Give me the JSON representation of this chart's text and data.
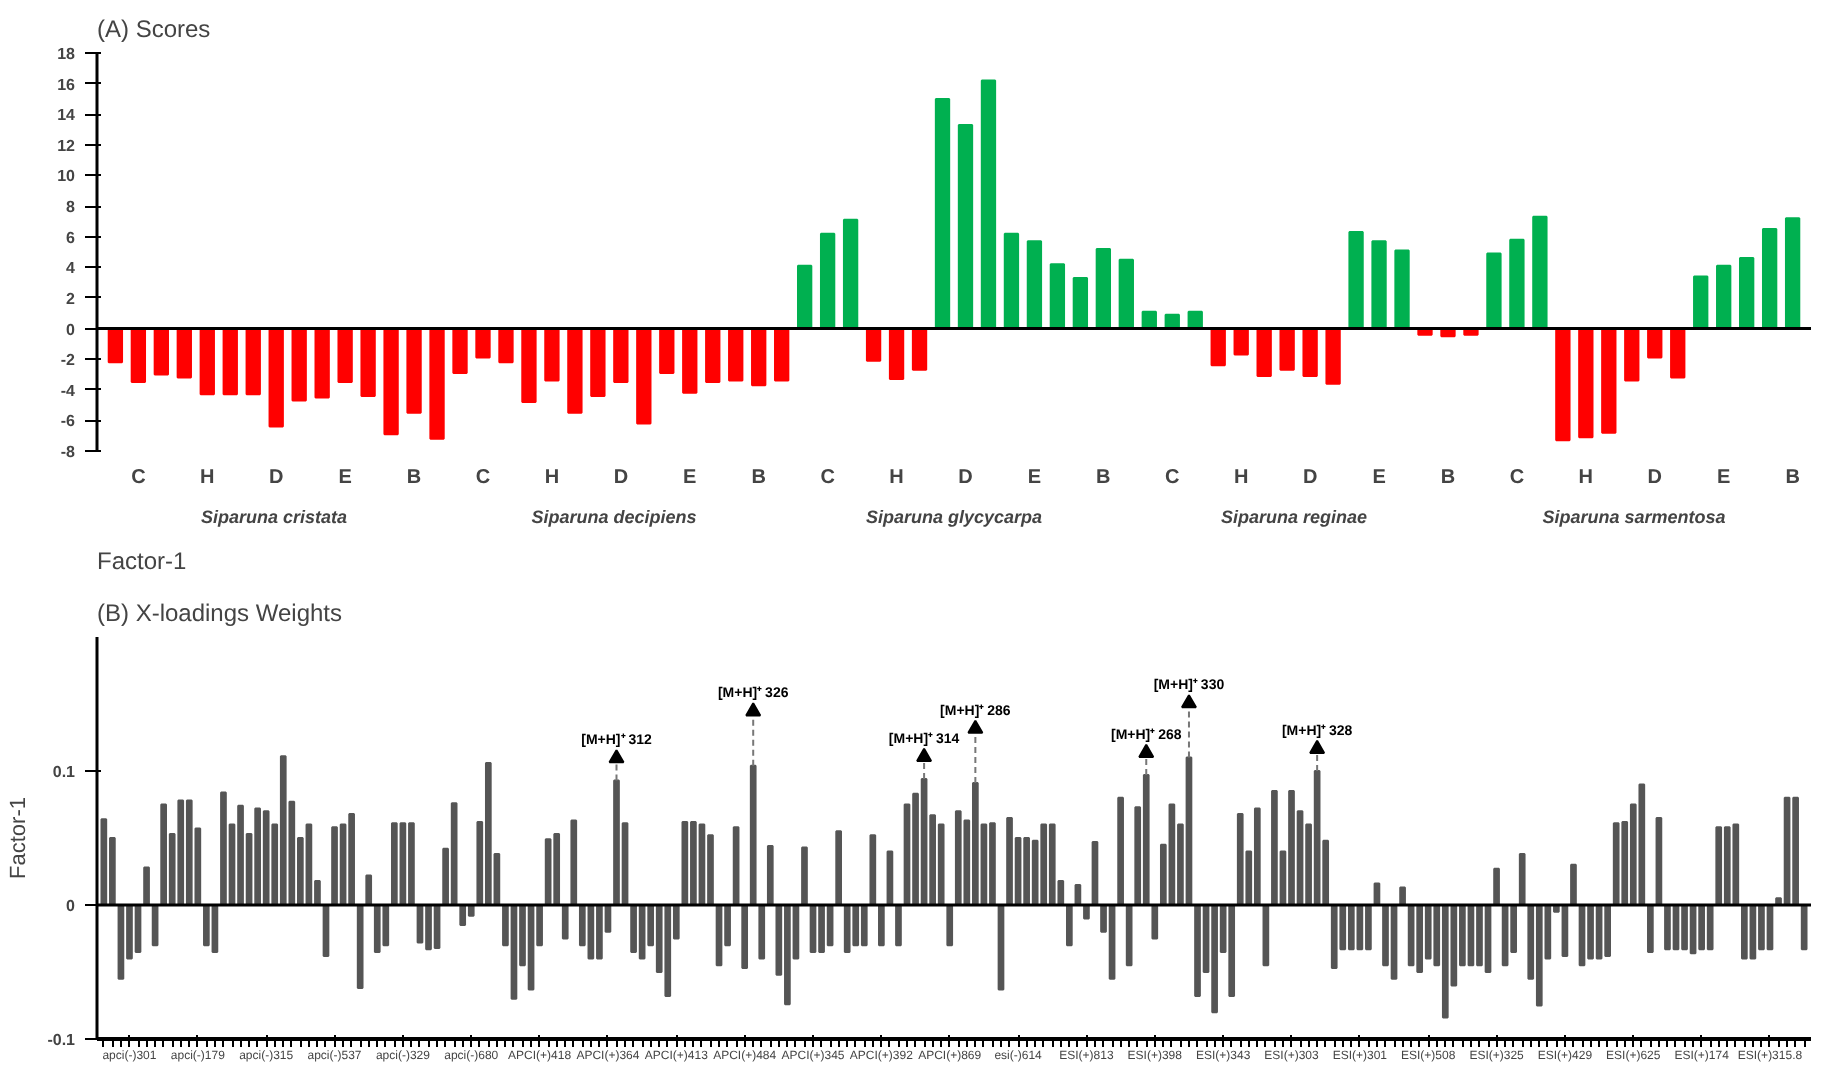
{
  "chart_data": [
    {
      "type": "bar",
      "title": "(A) Scores",
      "xlabel": "Factor-1",
      "categories": [
        null,
        "C",
        null,
        null,
        "H",
        null,
        null,
        "D",
        null,
        null,
        "E",
        null,
        null,
        "B",
        null,
        null,
        "C",
        null,
        null,
        "H",
        null,
        null,
        "D",
        null,
        null,
        "E",
        null,
        null,
        "B",
        null,
        null,
        "C",
        null,
        null,
        "H",
        null,
        null,
        "D",
        null,
        null,
        "E",
        null,
        null,
        "B",
        null,
        null,
        "C",
        null,
        null,
        "H",
        null,
        null,
        "D",
        null,
        null,
        "E",
        null,
        null,
        "B",
        null,
        null,
        "C",
        null,
        null,
        "H",
        null,
        null,
        "D",
        null,
        null,
        "E",
        null,
        null,
        "B"
      ],
      "values": [
        -2.2,
        -3.5,
        -3.0,
        -3.2,
        -4.3,
        -4.3,
        -4.3,
        -6.4,
        -4.7,
        -4.5,
        -3.5,
        -4.4,
        -6.9,
        -5.5,
        -7.2,
        -2.9,
        -1.9,
        -2.2,
        -4.8,
        -3.4,
        -5.5,
        -4.4,
        -3.5,
        -6.2,
        -2.9,
        -4.2,
        -3.5,
        -3.4,
        -3.7,
        -3.4,
        4.1,
        6.2,
        7.1,
        -2.1,
        -3.3,
        -2.7,
        15.0,
        13.3,
        16.2,
        6.2,
        5.7,
        4.2,
        3.3,
        5.2,
        4.5,
        1.1,
        0.9,
        1.1,
        -2.4,
        -1.7,
        -3.1,
        -2.7,
        -3.1,
        -3.6,
        6.3,
        5.7,
        5.1,
        -0.4,
        -0.5,
        -0.4,
        4.9,
        5.8,
        7.3,
        -7.3,
        -7.1,
        -6.8,
        -3.4,
        -1.9,
        -3.2,
        3.4,
        4.1,
        4.6,
        6.5,
        7.2
      ],
      "colors": [
        "#ff0000",
        "#ff0000",
        "#ff0000",
        "#ff0000",
        "#ff0000",
        "#ff0000",
        "#ff0000",
        "#ff0000",
        "#ff0000",
        "#ff0000",
        "#ff0000",
        "#ff0000",
        "#ff0000",
        "#ff0000",
        "#ff0000",
        "#ff0000",
        "#ff0000",
        "#ff0000",
        "#ff0000",
        "#ff0000",
        "#ff0000",
        "#ff0000",
        "#ff0000",
        "#ff0000",
        "#ff0000",
        "#ff0000",
        "#ff0000",
        "#ff0000",
        "#ff0000",
        "#ff0000",
        "#00b050",
        "#00b050",
        "#00b050",
        "#ff0000",
        "#ff0000",
        "#ff0000",
        "#00b050",
        "#00b050",
        "#00b050",
        "#00b050",
        "#00b050",
        "#00b050",
        "#00b050",
        "#00b050",
        "#00b050",
        "#00b050",
        "#00b050",
        "#00b050",
        "#ff0000",
        "#ff0000",
        "#ff0000",
        "#ff0000",
        "#ff0000",
        "#ff0000",
        "#00b050",
        "#00b050",
        "#00b050",
        "#ff0000",
        "#ff0000",
        "#ff0000",
        "#00b050",
        "#00b050",
        "#00b050",
        "#ff0000",
        "#ff0000",
        "#ff0000",
        "#ff0000",
        "#ff0000",
        "#ff0000",
        "#00b050",
        "#00b050",
        "#00b050",
        "#00b050",
        "#00b050"
      ],
      "ylim": [
        -8,
        18
      ],
      "yticks": [
        -8,
        -6,
        -4,
        -2,
        0,
        2,
        4,
        6,
        8,
        10,
        12,
        14,
        16,
        18
      ],
      "annotations": [
        "Siparuna cristata",
        "Siparuna decipiens",
        "Siparuna glycycarpa",
        "Siparuna reginae",
        "Siparuna sarmentosa"
      ]
    },
    {
      "type": "bar",
      "title": "(B) X-loadings Weights",
      "ylabel": "Factor-1",
      "color": "#555555",
      "categories": [
        null,
        null,
        null,
        "apci(-)301",
        null,
        null,
        null,
        null,
        null,
        null,
        null,
        "apci(-)179",
        null,
        null,
        null,
        null,
        null,
        null,
        null,
        "apci(-)315",
        null,
        null,
        null,
        null,
        null,
        null,
        null,
        "apci(-)537",
        null,
        null,
        null,
        null,
        null,
        null,
        null,
        "apci(-)329",
        null,
        null,
        null,
        null,
        null,
        null,
        null,
        "apci(-)680",
        null,
        null,
        null,
        null,
        null,
        null,
        null,
        "APCI(+)418",
        null,
        null,
        null,
        null,
        null,
        null,
        null,
        "APCI(+)364",
        null,
        null,
        null,
        null,
        null,
        null,
        null,
        "APCI(+)413",
        null,
        null,
        null,
        null,
        null,
        null,
        null,
        "APCI(+)484",
        null,
        null,
        null,
        null,
        null,
        null,
        null,
        "APCI(+)345",
        null,
        null,
        null,
        null,
        null,
        null,
        null,
        "APCI(+)392",
        null,
        null,
        null,
        null,
        null,
        null,
        null,
        "APCI(+)869",
        null,
        null,
        null,
        null,
        null,
        null,
        null,
        "esi(-)614",
        null,
        null,
        null,
        null,
        null,
        null,
        null,
        "ESI(+)813",
        null,
        null,
        null,
        null,
        null,
        null,
        null,
        "ESI(+)398",
        null,
        null,
        null,
        null,
        null,
        null,
        null,
        "ESI(+)343",
        null,
        null,
        null,
        null,
        null,
        null,
        null,
        "ESI(+)303",
        null,
        null,
        null,
        null,
        null,
        null,
        null,
        "ESI(+)301",
        null,
        null,
        null,
        null,
        null,
        null,
        null,
        "ESI(+)508",
        null,
        null,
        null,
        null,
        null,
        null,
        null,
        "ESI(+)325",
        null,
        null,
        null,
        null,
        null,
        null,
        null,
        "ESI(+)429",
        null,
        null,
        null,
        null,
        null,
        null,
        null,
        "ESI(+)625",
        null,
        null,
        null,
        null,
        null,
        null,
        null,
        "ESI(+)174",
        null,
        null,
        null,
        null,
        null,
        null,
        null,
        "ESI(+)315.8",
        null,
        null,
        null,
        null
      ],
      "values": [
        0.064,
        0.05,
        -0.055,
        -0.04,
        -0.035,
        0.028,
        -0.03,
        0.075,
        0.053,
        0.078,
        0.078,
        0.057,
        -0.03,
        -0.035,
        0.084,
        0.06,
        0.074,
        0.053,
        0.072,
        0.07,
        0.06,
        0.111,
        0.077,
        0.05,
        0.06,
        0.018,
        -0.038,
        0.058,
        0.06,
        0.068,
        -0.062,
        0.022,
        -0.035,
        -0.03,
        0.061,
        0.061,
        0.061,
        -0.028,
        -0.033,
        -0.032,
        0.042,
        0.076,
        -0.015,
        -0.008,
        0.062,
        0.106,
        0.038,
        -0.03,
        -0.07,
        -0.045,
        -0.063,
        -0.03,
        0.049,
        0.053,
        -0.025,
        0.063,
        -0.03,
        -0.04,
        -0.04,
        -0.02,
        0.093,
        0.061,
        -0.035,
        -0.04,
        -0.03,
        -0.05,
        -0.068,
        -0.025,
        0.062,
        0.062,
        0.06,
        0.052,
        -0.045,
        -0.03,
        0.058,
        -0.047,
        0.104,
        -0.04,
        0.044,
        -0.052,
        -0.074,
        -0.04,
        0.043,
        -0.035,
        -0.035,
        -0.03,
        0.055,
        -0.035,
        -0.03,
        -0.03,
        0.052,
        -0.03,
        0.04,
        -0.03,
        0.075,
        0.083,
        0.094,
        0.067,
        0.06,
        -0.03,
        0.07,
        0.063,
        0.091,
        0.06,
        0.061,
        -0.063,
        0.065,
        0.05,
        0.05,
        0.048,
        0.06,
        0.06,
        0.018,
        -0.03,
        0.015,
        -0.01,
        0.047,
        -0.02,
        -0.055,
        0.08,
        -0.045,
        0.073,
        0.097,
        -0.025,
        0.045,
        0.075,
        0.06,
        0.11,
        -0.068,
        -0.05,
        -0.08,
        -0.035,
        -0.068,
        0.068,
        0.04,
        0.072,
        -0.045,
        0.085,
        0.04,
        0.085,
        0.07,
        0.06,
        0.1,
        0.048,
        -0.047,
        -0.033,
        -0.033,
        -0.033,
        -0.033,
        0.016,
        -0.045,
        -0.055,
        0.013,
        -0.045,
        -0.05,
        -0.04,
        -0.045,
        -0.084,
        -0.06,
        -0.045,
        -0.045,
        -0.045,
        -0.05,
        0.027,
        -0.045,
        -0.035,
        0.038,
        -0.055,
        -0.075,
        -0.04,
        -0.005,
        -0.038,
        0.03,
        -0.045,
        -0.04,
        -0.04,
        -0.038,
        0.061,
        0.062,
        0.075,
        0.09,
        -0.035,
        0.065,
        -0.033,
        -0.033,
        -0.033,
        -0.036,
        -0.033,
        -0.033,
        0.058,
        0.058,
        0.06,
        -0.04,
        -0.04,
        -0.033,
        -0.033,
        0.005,
        0.08,
        0.08,
        -0.033
      ],
      "annotations": [
        {
          "text": "[M+H]⁺ 312",
          "y": 0.093
        },
        {
          "text": "[M+H]⁺ 326",
          "y": 0.104
        },
        {
          "text": "[M+H]⁺ 314",
          "y": 0.094
        },
        {
          "text": "[M+H]⁺ 286",
          "y": 0.091
        },
        {
          "text": "[M+H]⁺ 268",
          "y": 0.097
        },
        {
          "text": "[M+H]⁺ 330",
          "y": 0.11
        },
        {
          "text": "[M+H]⁺ 328",
          "y": 0.1
        }
      ],
      "ylim": [
        -0.1,
        0.2
      ],
      "yticks": [
        -0.1,
        0,
        0.1
      ]
    }
  ]
}
